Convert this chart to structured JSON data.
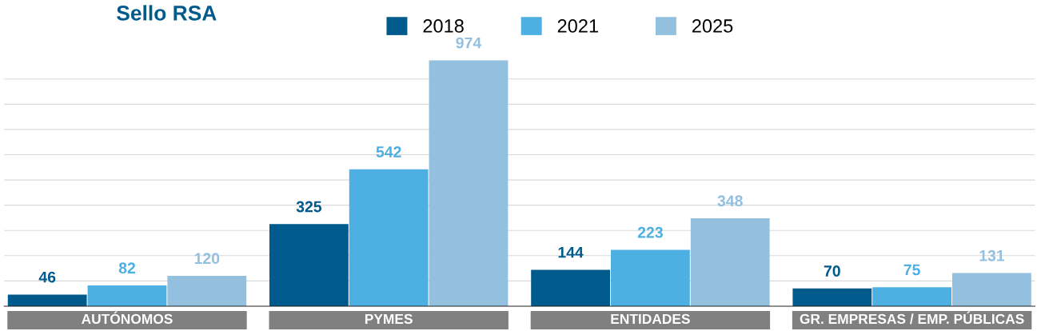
{
  "chart_data": {
    "type": "bar",
    "title": "Sello RSA",
    "categories": [
      "AUTÓNOMOS",
      "PYMES",
      "ENTIDADES",
      "GR. EMPRESAS / EMP. PÚBLICAS"
    ],
    "series": [
      {
        "name": "2018",
        "color": "#005a8c",
        "values": [
          46,
          325,
          144,
          70
        ]
      },
      {
        "name": "2021",
        "color": "#4eb0e2",
        "values": [
          82,
          542,
          223,
          75
        ]
      },
      {
        "name": "2025",
        "color": "#93c0df",
        "values": [
          120,
          974,
          348,
          131
        ]
      }
    ],
    "yticks": [
      {
        "value": 100,
        "label": null
      },
      {
        "value": 200,
        "label": null
      },
      {
        "value": 300,
        "label": null
      },
      {
        "value": 400,
        "label": null
      },
      {
        "value": 500,
        "label": null
      },
      {
        "value": 600,
        "label": null
      },
      {
        "value": 700,
        "label": null
      },
      {
        "value": 800,
        "label": null
      },
      {
        "value": 900,
        "label": null
      }
    ],
    "grid": "y",
    "legend": "top",
    "data_labels": true
  }
}
